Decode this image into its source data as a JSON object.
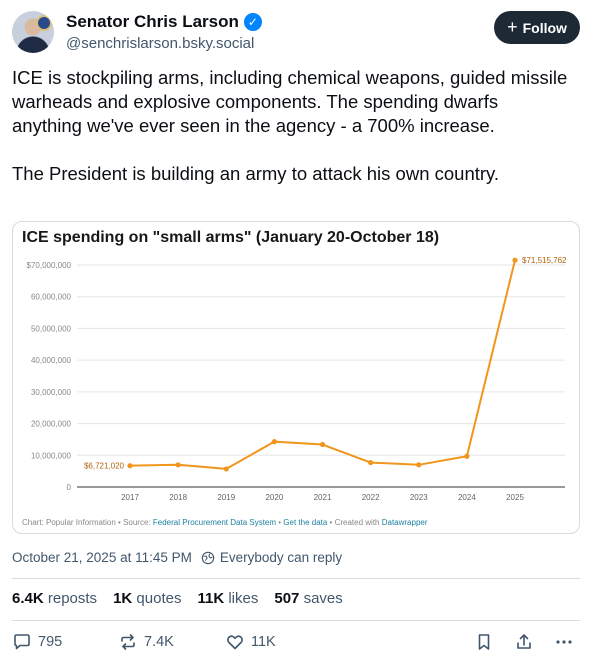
{
  "author": {
    "name": "Senator Chris Larson",
    "handle": "@senchrislarson.bsky.social",
    "follow_label": "Follow"
  },
  "post": {
    "paragraph1": "ICE is stockpiling arms, including chemical weapons, guided missile warheads and explosive components. The spending dwarfs anything we've ever seen in the agency - a 700% increase.",
    "paragraph2": "The President is building an army to attack his own country."
  },
  "chart_data": {
    "type": "line",
    "title": "ICE spending on \"small arms\" (January 20-October 18)",
    "x": [
      "2017",
      "2018",
      "2019",
      "2020",
      "2021",
      "2022",
      "2023",
      "2024",
      "2025"
    ],
    "values": [
      6721020,
      7000000,
      5700000,
      14300000,
      13400000,
      7700000,
      7000000,
      9700000,
      71515762
    ],
    "value_labels": {
      "first": "$6,721,020",
      "last": "$71,515,762"
    },
    "yticks": [
      "$70,000,000",
      "60,000,000",
      "50,000,000",
      "40,000,000",
      "30,000,000",
      "20,000,000",
      "10,000,000",
      "0"
    ],
    "ytick_values": [
      70000000,
      60000000,
      50000000,
      40000000,
      30000000,
      20000000,
      10000000,
      0
    ],
    "ylim": [
      0,
      70000000
    ],
    "grid": true,
    "color": "#f1951d",
    "footer": {
      "prefix": "Chart: Popular Information • Source: ",
      "source": "Federal Procurement Data System",
      "sep1": " • ",
      "get_data": "Get the data",
      "sep2": " • Created with ",
      "tool": "Datawrapper"
    }
  },
  "meta": {
    "timestamp": "October 21, 2025 at 11:45 PM",
    "reply_setting": "Everybody can reply"
  },
  "stats": {
    "reposts_count": "6.4K",
    "reposts_label": "reposts",
    "quotes_count": "1K",
    "quotes_label": "quotes",
    "likes_count": "11K",
    "likes_label": "likes",
    "saves_count": "507",
    "saves_label": "saves"
  },
  "actions": {
    "reply_count": "795",
    "repost_count": "7.4K",
    "like_count": "11K"
  },
  "colors": {
    "accent": "#0085ff",
    "follow_bg": "#1e2936",
    "line": "#f1951d"
  }
}
